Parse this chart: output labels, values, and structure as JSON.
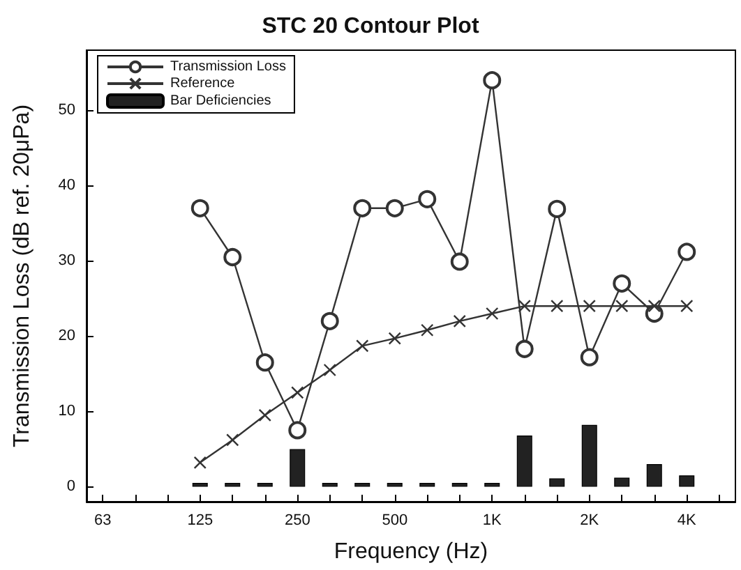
{
  "chart_data": {
    "type": "line",
    "title": "STC 20 Contour Plot",
    "xlabel": "Frequency (Hz)",
    "ylabel": "Transmission Loss (dB ref. 20μPa)",
    "categories": [
      "63",
      null,
      null,
      "125",
      null,
      null,
      "250",
      null,
      null,
      "500",
      null,
      null,
      "1K",
      null,
      null,
      "2K",
      null,
      null,
      "4K",
      null
    ],
    "ylim": [
      -2,
      58
    ],
    "yticks": [
      0,
      10,
      20,
      30,
      40,
      50
    ],
    "grid": false,
    "legend": "top left",
    "series": [
      {
        "name": "Transmission Loss",
        "marker": "circle",
        "color": "#333333",
        "values": [
          null,
          null,
          null,
          37,
          30.5,
          16.5,
          7.5,
          22,
          37,
          37,
          38.2,
          29.9,
          54,
          18.3,
          36.9,
          17.2,
          27,
          23,
          31.2,
          null
        ]
      },
      {
        "name": "Reference",
        "marker": "cross",
        "color": "#333333",
        "values": [
          null,
          null,
          null,
          3.2,
          6.2,
          9.5,
          12.5,
          15.5,
          18.7,
          19.7,
          20.8,
          22,
          23,
          24,
          24,
          24,
          24,
          24,
          24,
          null
        ]
      },
      {
        "name": "Bar Deficiencies",
        "type": "bar",
        "color": "#222222",
        "values": [
          null,
          null,
          null,
          0.5,
          0.5,
          0.5,
          5,
          0.5,
          0.5,
          0.5,
          0.5,
          0.5,
          0.5,
          6.8,
          1.1,
          8.2,
          1.2,
          3,
          1.5,
          null
        ]
      }
    ]
  }
}
